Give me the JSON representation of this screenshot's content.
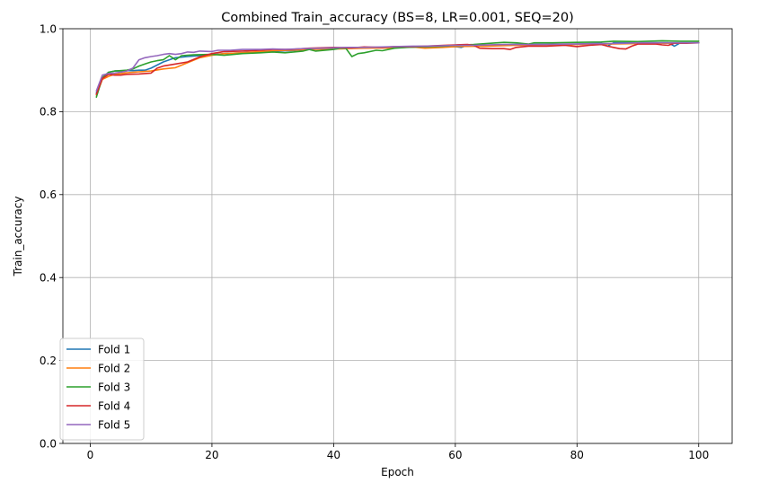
{
  "chart_data": {
    "type": "line",
    "title": "Combined Train_accuracy (BS=8, LR=0.001, SEQ=20)",
    "xlabel": "Epoch",
    "ylabel": "Train_accuracy",
    "xlim": [
      -4.5,
      105.5
    ],
    "ylim": [
      0.0,
      1.0
    ],
    "xticks": [
      0,
      20,
      40,
      60,
      80,
      100
    ],
    "yticks": [
      0.0,
      0.2,
      0.4,
      0.6,
      0.8,
      1.0
    ],
    "xtick_labels": [
      "0",
      "20",
      "40",
      "60",
      "80",
      "100"
    ],
    "ytick_labels": [
      "0.0",
      "0.2",
      "0.4",
      "0.6",
      "0.8",
      "1.0"
    ],
    "grid": true,
    "legend_position": "bottom-left",
    "series": [
      {
        "name": "Fold 1",
        "color": "#1f77b4",
        "points": [
          [
            1,
            0.845
          ],
          [
            2,
            0.88
          ],
          [
            3,
            0.895
          ],
          [
            4,
            0.898
          ],
          [
            5,
            0.898
          ],
          [
            6,
            0.899
          ],
          [
            7,
            0.899
          ],
          [
            8,
            0.9
          ],
          [
            9,
            0.9
          ],
          [
            10,
            0.905
          ],
          [
            12,
            0.92
          ],
          [
            14,
            0.93
          ],
          [
            16,
            0.933
          ],
          [
            18,
            0.935
          ],
          [
            20,
            0.937
          ],
          [
            22,
            0.94
          ],
          [
            25,
            0.942
          ],
          [
            28,
            0.944
          ],
          [
            30,
            0.946
          ],
          [
            33,
            0.947
          ],
          [
            36,
            0.95
          ],
          [
            40,
            0.952
          ],
          [
            45,
            0.954
          ],
          [
            50,
            0.955
          ],
          [
            55,
            0.956
          ],
          [
            60,
            0.957
          ],
          [
            61,
            0.955
          ],
          [
            62,
            0.96
          ],
          [
            65,
            0.96
          ],
          [
            70,
            0.962
          ],
          [
            75,
            0.962
          ],
          [
            80,
            0.963
          ],
          [
            84,
            0.965
          ],
          [
            85,
            0.958
          ],
          [
            86,
            0.966
          ],
          [
            90,
            0.966
          ],
          [
            95,
            0.966
          ],
          [
            96,
            0.958
          ],
          [
            97,
            0.966
          ],
          [
            100,
            0.966
          ]
        ]
      },
      {
        "name": "Fold 2",
        "color": "#ff7f0e",
        "points": [
          [
            1,
            0.84
          ],
          [
            2,
            0.878
          ],
          [
            3,
            0.885
          ],
          [
            4,
            0.89
          ],
          [
            5,
            0.892
          ],
          [
            6,
            0.894
          ],
          [
            8,
            0.896
          ],
          [
            10,
            0.898
          ],
          [
            12,
            0.903
          ],
          [
            14,
            0.906
          ],
          [
            16,
            0.918
          ],
          [
            18,
            0.93
          ],
          [
            20,
            0.936
          ],
          [
            22,
            0.94
          ],
          [
            25,
            0.942
          ],
          [
            28,
            0.945
          ],
          [
            30,
            0.947
          ],
          [
            33,
            0.948
          ],
          [
            36,
            0.95
          ],
          [
            40,
            0.951
          ],
          [
            45,
            0.953
          ],
          [
            50,
            0.954
          ],
          [
            53,
            0.956
          ],
          [
            55,
            0.953
          ],
          [
            58,
            0.955
          ],
          [
            60,
            0.957
          ],
          [
            65,
            0.958
          ],
          [
            70,
            0.96
          ],
          [
            75,
            0.961
          ],
          [
            80,
            0.962
          ],
          [
            85,
            0.963
          ],
          [
            90,
            0.964
          ],
          [
            95,
            0.965
          ],
          [
            100,
            0.966
          ]
        ]
      },
      {
        "name": "Fold 3",
        "color": "#2ca02c",
        "points": [
          [
            1,
            0.835
          ],
          [
            2,
            0.882
          ],
          [
            3,
            0.895
          ],
          [
            4,
            0.898
          ],
          [
            5,
            0.899
          ],
          [
            6,
            0.9
          ],
          [
            7,
            0.903
          ],
          [
            8,
            0.91
          ],
          [
            9,
            0.915
          ],
          [
            10,
            0.92
          ],
          [
            11,
            0.923
          ],
          [
            12,
            0.925
          ],
          [
            13,
            0.935
          ],
          [
            14,
            0.925
          ],
          [
            15,
            0.935
          ],
          [
            17,
            0.937
          ],
          [
            20,
            0.938
          ],
          [
            22,
            0.936
          ],
          [
            25,
            0.94
          ],
          [
            28,
            0.942
          ],
          [
            30,
            0.944
          ],
          [
            32,
            0.942
          ],
          [
            35,
            0.946
          ],
          [
            36,
            0.95
          ],
          [
            37,
            0.946
          ],
          [
            40,
            0.95
          ],
          [
            41,
            0.953
          ],
          [
            42,
            0.953
          ],
          [
            43,
            0.933
          ],
          [
            44,
            0.94
          ],
          [
            45,
            0.942
          ],
          [
            47,
            0.948
          ],
          [
            48,
            0.947
          ],
          [
            50,
            0.953
          ],
          [
            52,
            0.955
          ],
          [
            55,
            0.957
          ],
          [
            58,
            0.958
          ],
          [
            60,
            0.96
          ],
          [
            63,
            0.962
          ],
          [
            65,
            0.964
          ],
          [
            68,
            0.967
          ],
          [
            70,
            0.966
          ],
          [
            72,
            0.963
          ],
          [
            73,
            0.966
          ],
          [
            76,
            0.966
          ],
          [
            80,
            0.967
          ],
          [
            84,
            0.968
          ],
          [
            86,
            0.97
          ],
          [
            90,
            0.969
          ],
          [
            94,
            0.971
          ],
          [
            97,
            0.97
          ],
          [
            100,
            0.97
          ]
        ]
      },
      {
        "name": "Fold 4",
        "color": "#d62728",
        "points": [
          [
            1,
            0.842
          ],
          [
            2,
            0.88
          ],
          [
            3,
            0.89
          ],
          [
            4,
            0.888
          ],
          [
            5,
            0.888
          ],
          [
            6,
            0.89
          ],
          [
            8,
            0.891
          ],
          [
            10,
            0.893
          ],
          [
            11,
            0.905
          ],
          [
            12,
            0.91
          ],
          [
            14,
            0.915
          ],
          [
            16,
            0.92
          ],
          [
            18,
            0.932
          ],
          [
            20,
            0.94
          ],
          [
            22,
            0.945
          ],
          [
            25,
            0.946
          ],
          [
            28,
            0.948
          ],
          [
            30,
            0.95
          ],
          [
            33,
            0.95
          ],
          [
            36,
            0.953
          ],
          [
            40,
            0.955
          ],
          [
            43,
            0.954
          ],
          [
            45,
            0.956
          ],
          [
            48,
            0.955
          ],
          [
            50,
            0.957
          ],
          [
            53,
            0.957
          ],
          [
            55,
            0.958
          ],
          [
            58,
            0.96
          ],
          [
            60,
            0.961
          ],
          [
            62,
            0.962
          ],
          [
            63,
            0.96
          ],
          [
            64,
            0.953
          ],
          [
            66,
            0.952
          ],
          [
            68,
            0.952
          ],
          [
            69,
            0.95
          ],
          [
            70,
            0.955
          ],
          [
            72,
            0.958
          ],
          [
            75,
            0.958
          ],
          [
            78,
            0.96
          ],
          [
            80,
            0.957
          ],
          [
            82,
            0.96
          ],
          [
            84,
            0.962
          ],
          [
            85,
            0.958
          ],
          [
            86,
            0.955
          ],
          [
            87,
            0.952
          ],
          [
            88,
            0.951
          ],
          [
            89,
            0.958
          ],
          [
            90,
            0.963
          ],
          [
            93,
            0.963
          ],
          [
            94,
            0.961
          ],
          [
            95,
            0.96
          ],
          [
            96,
            0.965
          ],
          [
            98,
            0.965
          ],
          [
            100,
            0.966
          ]
        ]
      },
      {
        "name": "Fold 5",
        "color": "#9467bd",
        "points": [
          [
            1,
            0.85
          ],
          [
            2,
            0.888
          ],
          [
            3,
            0.892
          ],
          [
            4,
            0.893
          ],
          [
            5,
            0.895
          ],
          [
            6,
            0.898
          ],
          [
            7,
            0.905
          ],
          [
            8,
            0.925
          ],
          [
            9,
            0.93
          ],
          [
            10,
            0.933
          ],
          [
            11,
            0.935
          ],
          [
            12,
            0.938
          ],
          [
            13,
            0.94
          ],
          [
            14,
            0.938
          ],
          [
            15,
            0.94
          ],
          [
            16,
            0.944
          ],
          [
            17,
            0.943
          ],
          [
            18,
            0.946
          ],
          [
            20,
            0.945
          ],
          [
            21,
            0.948
          ],
          [
            23,
            0.948
          ],
          [
            25,
            0.95
          ],
          [
            28,
            0.95
          ],
          [
            30,
            0.951
          ],
          [
            32,
            0.95
          ],
          [
            35,
            0.952
          ],
          [
            38,
            0.953
          ],
          [
            40,
            0.954
          ],
          [
            42,
            0.955
          ],
          [
            45,
            0.955
          ],
          [
            48,
            0.956
          ],
          [
            50,
            0.957
          ],
          [
            53,
            0.958
          ],
          [
            55,
            0.958
          ],
          [
            58,
            0.959
          ],
          [
            60,
            0.96
          ],
          [
            63,
            0.96
          ],
          [
            65,
            0.961
          ],
          [
            68,
            0.962
          ],
          [
            70,
            0.962
          ],
          [
            73,
            0.962
          ],
          [
            75,
            0.962
          ],
          [
            78,
            0.963
          ],
          [
            80,
            0.963
          ],
          [
            83,
            0.964
          ],
          [
            85,
            0.964
          ],
          [
            88,
            0.965
          ],
          [
            90,
            0.966
          ],
          [
            93,
            0.966
          ],
          [
            95,
            0.966
          ],
          [
            98,
            0.966
          ],
          [
            100,
            0.966
          ]
        ]
      }
    ]
  }
}
